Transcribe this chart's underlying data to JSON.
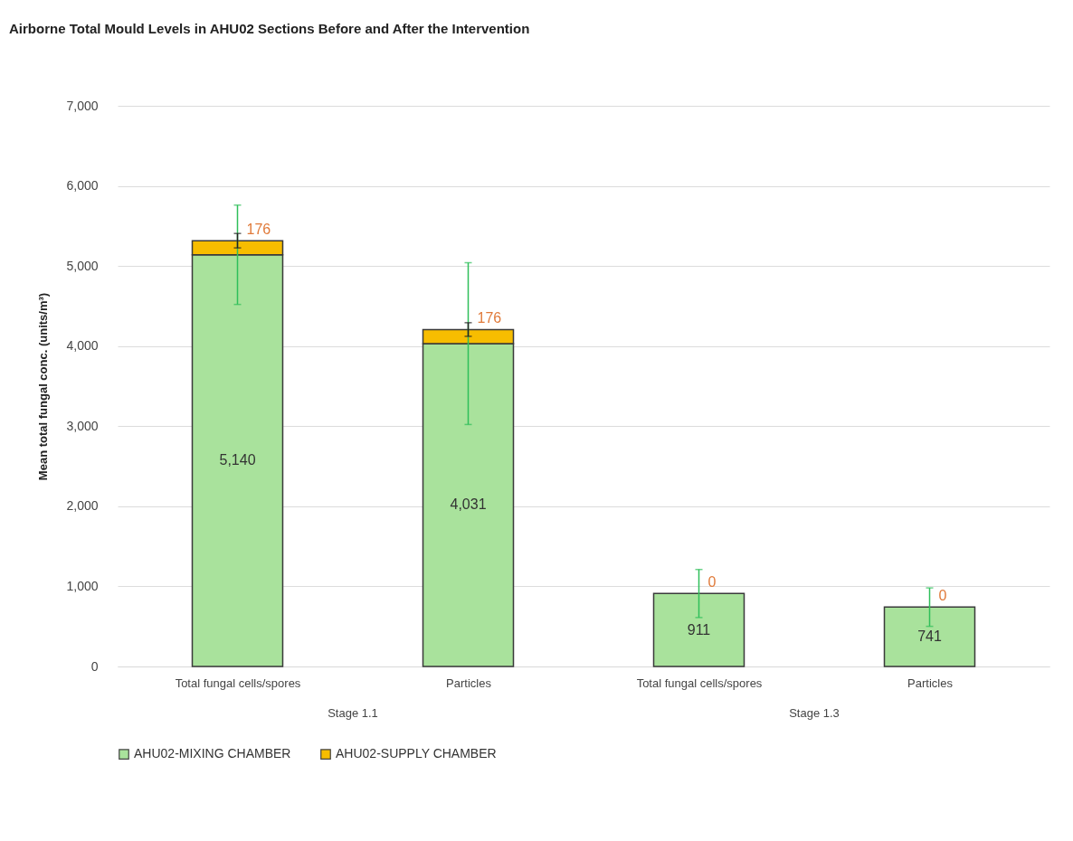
{
  "chart_data": {
    "type": "bar",
    "title": "Airborne Total Mould Levels in AHU02 Sections Before and After the Intervention",
    "ylabel": "Mean total fungal conc. (units/m³)",
    "categories": [
      "Total fungal cells/spores",
      "Particles",
      "Total fungal cells/spores",
      "Particles"
    ],
    "series": [
      {
        "name": "AHU02-MIXING CHAMBER",
        "color": "#a9e29c",
        "values": [
          5140,
          4031,
          911,
          741
        ],
        "errors": [
          620,
          1010,
          300,
          240
        ],
        "value_labels": [
          "5,140",
          "4,031",
          "911",
          "741"
        ]
      },
      {
        "name": "AHU02-SUPPLY CHAMBER",
        "color": "#f7bd00",
        "values": [
          176,
          176,
          0,
          0
        ],
        "errors": [
          90,
          85,
          null,
          null
        ],
        "value_labels": [
          "176",
          "176",
          "0",
          "0"
        ]
      }
    ],
    "stacked": true,
    "ylim": [
      0,
      7000
    ],
    "yticks": [
      0,
      {
        "value": 1000,
        "label": "1,000"
      },
      {
        "value": 2000,
        "label": "2,000"
      },
      {
        "value": 3000,
        "label": "3,000"
      },
      {
        "value": 4000,
        "label": "4,000"
      },
      {
        "value": 5000,
        "label": "5,000"
      },
      {
        "value": 6000,
        "label": "6,000"
      },
      {
        "value": 7000,
        "label": "7,000"
      }
    ],
    "grid": "y",
    "legend": "bottom",
    "annotations": [
      "Stage 1.1",
      "Stage 1.3"
    ]
  }
}
